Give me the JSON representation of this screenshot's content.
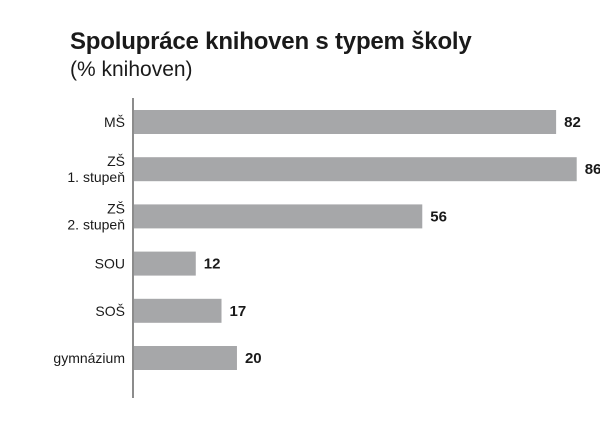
{
  "chart_data": {
    "type": "bar",
    "orientation": "horizontal",
    "title": "Spolupráce knihoven s typem školy",
    "subtitle": "(% knihoven)",
    "categories": [
      [
        "MŠ"
      ],
      [
        "ZŠ",
        "1. stupeň"
      ],
      [
        "ZŠ",
        "2. stupeň"
      ],
      [
        "SOU"
      ],
      [
        "SOŠ"
      ],
      [
        "gymnázium"
      ]
    ],
    "values": [
      82,
      86,
      56,
      12,
      17,
      20
    ],
    "xlim": [
      0,
      88
    ],
    "grid": false,
    "colors": {
      "bar": "#a6a7a9",
      "text": "#1a1a1a"
    }
  }
}
